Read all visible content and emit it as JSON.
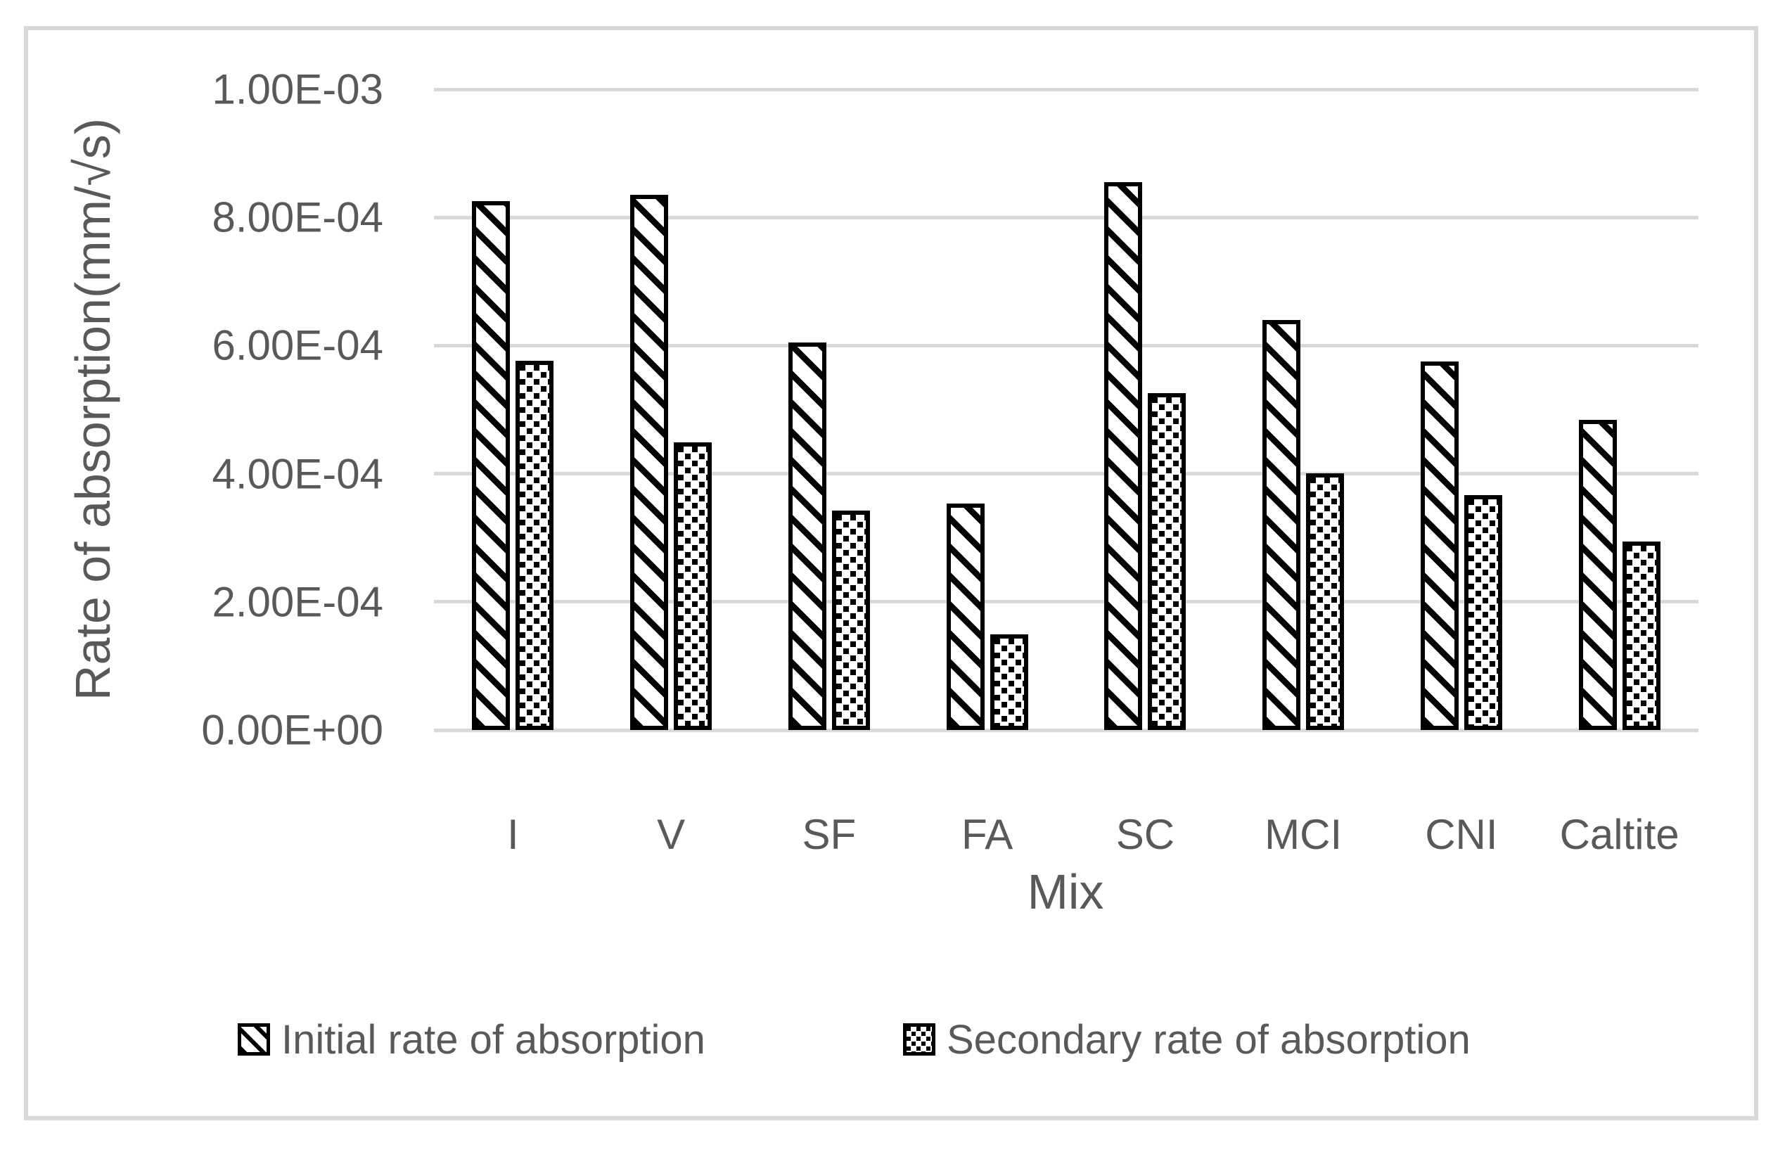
{
  "figure": {
    "y_axis_title": "Rate of absorption(mm/√s)",
    "x_axis_title": "Mix"
  },
  "legend": [
    {
      "label": "Initial rate of absorption",
      "series": "initial"
    },
    {
      "label": "Secondary rate of absorption",
      "series": "secondary"
    }
  ],
  "chart_data": {
    "type": "bar",
    "title": "",
    "xlabel": "Mix",
    "ylabel": "Rate of absorption(mm/√s)",
    "categories": [
      "I",
      "V",
      "SF",
      "FA",
      "SC",
      "MCI",
      "CNI",
      "Caltite"
    ],
    "series": [
      {
        "name": "Initial rate of absorption",
        "pattern": "diagonal-stripes",
        "values": [
          0.000825,
          0.000835,
          0.000605,
          0.000353,
          0.000855,
          0.00064,
          0.000575,
          0.000484
        ]
      },
      {
        "name": "Secondary rate of absorption",
        "pattern": "dotted-squares",
        "values": [
          0.000576,
          0.000449,
          0.000342,
          0.000149,
          0.000526,
          0.000401,
          0.000367,
          0.000294
        ]
      }
    ],
    "ylim": [
      0,
      0.001
    ],
    "y_ticks": [
      {
        "value": 0.0,
        "label": "0.00E+00"
      },
      {
        "value": 0.0002,
        "label": "2.00E-04"
      },
      {
        "value": 0.0004,
        "label": "4.00E-04"
      },
      {
        "value": 0.0006,
        "label": "6.00E-04"
      },
      {
        "value": 0.0008,
        "label": "8.00E-04"
      },
      {
        "value": 0.001,
        "label": "1.00E-03"
      }
    ],
    "grid": true,
    "legend_position": "bottom",
    "colors": {
      "text": "#595959",
      "gridline": "#D9D9D9",
      "bar_outline": "#000000",
      "bar_fill": "#FFFFFF"
    }
  }
}
